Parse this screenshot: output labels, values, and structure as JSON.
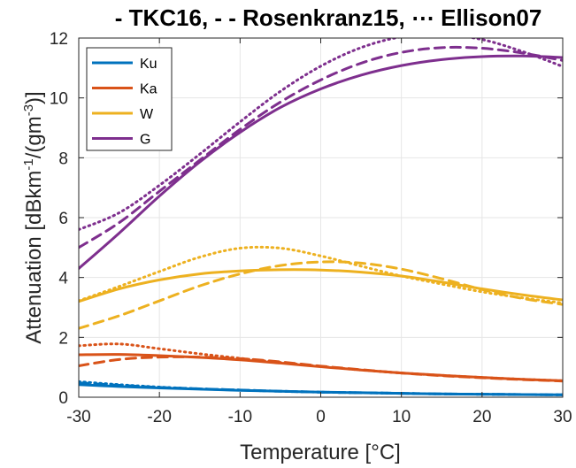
{
  "chart_data": {
    "type": "line",
    "title": "- TKC16, - - Rosenkranz15, ⋯ Ellison07",
    "xlabel": "Temperature [°C]",
    "ylabel_main": "Attenuation [dBkm",
    "ylabel_sup1": "-1",
    "ylabel_mid": "/(gm",
    "ylabel_sup2": "-3",
    "ylabel_end": ")]",
    "xlim": [
      -30,
      30
    ],
    "ylim": [
      0,
      12
    ],
    "xticks": [
      -30,
      -20,
      -10,
      0,
      10,
      20,
      30
    ],
    "yticks": [
      0,
      2,
      4,
      6,
      8,
      10,
      12
    ],
    "grid": true,
    "legend_position": "top-left",
    "line_styles": {
      "TKC16": "solid",
      "Rosenkranz15": "dashed",
      "Ellison07": "dotted"
    },
    "x": [
      -30,
      -25,
      -20,
      -15,
      -10,
      -5,
      0,
      5,
      10,
      15,
      20,
      25,
      30
    ],
    "series": [
      {
        "name": "Ku",
        "color": "#0072BD",
        "TKC16": [
          0.42,
          0.36,
          0.31,
          0.27,
          0.23,
          0.2,
          0.17,
          0.15,
          0.13,
          0.11,
          0.1,
          0.09,
          0.08
        ],
        "Rosenkranz15": [
          0.48,
          0.4,
          0.33,
          0.28,
          0.24,
          0.2,
          0.17,
          0.15,
          0.13,
          0.11,
          0.1,
          0.09,
          0.08
        ],
        "Ellison07": [
          0.52,
          0.42,
          0.34,
          0.28,
          0.24,
          0.2,
          0.17,
          0.15,
          0.13,
          0.11,
          0.1,
          0.09,
          0.08
        ]
      },
      {
        "name": "Ka",
        "color": "#D95319",
        "TKC16": [
          1.42,
          1.43,
          1.39,
          1.33,
          1.25,
          1.14,
          1.02,
          0.91,
          0.81,
          0.73,
          0.66,
          0.6,
          0.55
        ],
        "Rosenkranz15": [
          1.05,
          1.26,
          1.34,
          1.34,
          1.29,
          1.18,
          1.04,
          0.92,
          0.81,
          0.72,
          0.65,
          0.59,
          0.54
        ],
        "Ellison07": [
          1.72,
          1.78,
          1.62,
          1.45,
          1.3,
          1.16,
          1.03,
          0.91,
          0.81,
          0.73,
          0.66,
          0.6,
          0.55
        ]
      },
      {
        "name": "W",
        "color": "#EDB120",
        "TKC16": [
          3.2,
          3.62,
          3.92,
          4.12,
          4.22,
          4.26,
          4.25,
          4.18,
          4.05,
          3.85,
          3.62,
          3.42,
          3.25
        ],
        "Rosenkranz15": [
          2.3,
          2.72,
          3.22,
          3.72,
          4.12,
          4.4,
          4.52,
          4.48,
          4.28,
          3.96,
          3.6,
          3.3,
          3.1
        ],
        "Ellison07": [
          3.22,
          3.7,
          4.2,
          4.68,
          4.98,
          4.98,
          4.72,
          4.38,
          4.05,
          3.78,
          3.52,
          3.32,
          3.15
        ]
      },
      {
        "name": "G",
        "color": "#7E2F8E",
        "TKC16": [
          4.3,
          5.48,
          6.72,
          7.86,
          8.85,
          9.68,
          10.3,
          10.76,
          11.08,
          11.28,
          11.38,
          11.4,
          11.35
        ],
        "Rosenkranz15": [
          5.0,
          5.83,
          6.88,
          7.92,
          8.95,
          9.86,
          10.6,
          11.16,
          11.52,
          11.68,
          11.66,
          11.5,
          11.25
        ],
        "Ellison07": [
          5.6,
          6.16,
          7.08,
          8.12,
          9.2,
          10.22,
          11.06,
          11.68,
          12.04,
          12.12,
          11.95,
          11.55,
          11.05
        ]
      }
    ]
  }
}
